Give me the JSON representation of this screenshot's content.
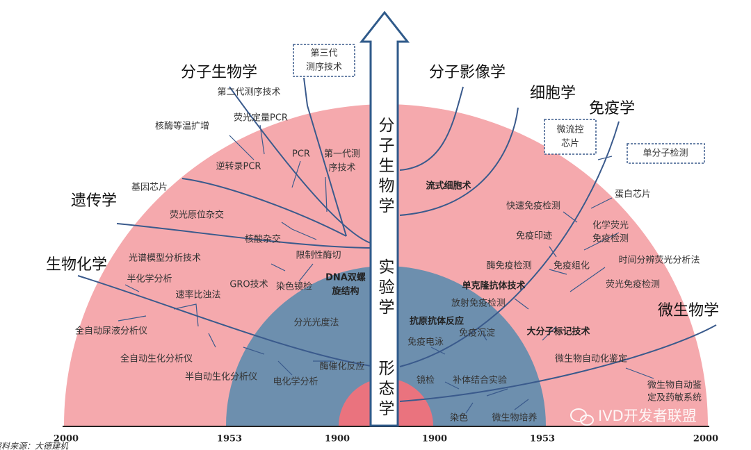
{
  "arrow_text": [
    "分子生物学",
    "实验学",
    "形态学"
  ],
  "headings": [
    "分子生物学",
    "遗传学",
    "生物化学",
    "分子影像学",
    "细胞学",
    "免疫学",
    "微生物学"
  ],
  "boxes": [
    [
      "第三代",
      "测序技术"
    ],
    [
      "微流控",
      "芯片"
    ],
    [
      "单分子检测"
    ]
  ],
  "left_labels": [
    "第二代测序技术",
    "核酶等温扩增",
    "荧光定量PCR",
    "PCR",
    [
      "第一代测",
      "序技术"
    ],
    "逆转录PCR",
    "基因芯片",
    "荧光原位杂交",
    "核酸杂交",
    "限制性酶切",
    "光谱模型分析技术",
    "半化学分析",
    "GRO技术",
    "染色镜检",
    [
      "DNA双螺",
      "旋结构"
    ],
    "速率比浊法",
    "全自动尿液分析仪",
    "分光光度法",
    "全自动生化分析仪",
    "酶催化反应",
    "半自动生化分析仪",
    "电化学分析"
  ],
  "right_labels": [
    "流式细胞术",
    "蛋白芯片",
    "快速免疫检测",
    [
      "化学荧光",
      "免疫检测"
    ],
    "免疫印迹",
    "酶免疫检测",
    "免疫组化",
    "时间分辨荧光分析法",
    "单克隆抗体技术",
    "荧光免疫检测",
    "放射免疫检测",
    "抗原抗体反应",
    "免疫沉淀",
    "大分子标记技术",
    "免疫电泳",
    "微生物自动化鉴定",
    "镜检",
    "补体结合实验",
    [
      "微生物自动鉴",
      "定及药敏系统"
    ],
    "染色",
    "微生物培养"
  ],
  "axis_labels": [
    "2000",
    "1953",
    "1900",
    "1900",
    "1953",
    "2000"
  ],
  "watermark": "IVD开发者联盟",
  "source": "资料来源：大德建机"
}
